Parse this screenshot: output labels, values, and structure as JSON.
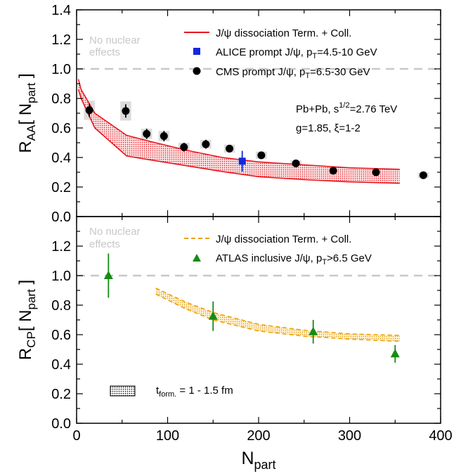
{
  "chart_data": [
    {
      "type": "scatter",
      "panel": "top",
      "ylabel_main": "R",
      "ylabel_sub": "AA",
      "ylabel_rest": "[ N",
      "ylabel_rest_sub": "part",
      "ylabel_close": " ]",
      "xlim": [
        0,
        400
      ],
      "ylim": [
        0,
        1.4
      ],
      "yticks": [
        "0.0",
        "0.2",
        "0.4",
        "0.6",
        "0.8",
        "1.0",
        "1.2",
        "1.4"
      ],
      "reference_line": {
        "y": 1.0,
        "label_line1": "No nuclear",
        "label_line2": "effects"
      },
      "info_line1": "Pb+Pb, s",
      "info_line1_sup": "1/2",
      "info_line1_rest": "=2.76 TeV",
      "info_line2": "g=1.85,   ξ=1-2",
      "band": {
        "name": "J/ψ dissociation Term. + Coll.",
        "color": "#e8141e",
        "x": [
          2,
          5,
          20,
          55,
          80,
          120,
          160,
          200,
          250,
          300,
          355
        ],
        "upper": [
          0.93,
          0.86,
          0.7,
          0.55,
          0.51,
          0.45,
          0.4,
          0.37,
          0.35,
          0.33,
          0.32
        ],
        "lower": [
          0.86,
          0.8,
          0.6,
          0.41,
          0.385,
          0.345,
          0.305,
          0.27,
          0.25,
          0.235,
          0.225
        ]
      },
      "series": [
        {
          "name": "ALICE prompt J/ψ, p",
          "name_sub": "T",
          "name_rest": "=4.5-10 GeV",
          "marker": "square",
          "color": "#1428dc",
          "x": [
            182
          ],
          "y": [
            0.375
          ],
          "err": [
            0.07
          ],
          "box_w": [
            0
          ],
          "box_h": [
            0
          ]
        },
        {
          "name": "CMS prompt J/ψ, p",
          "name_sub": "T",
          "name_rest": "=6.5-30 GeV",
          "marker": "circle",
          "color": "#000000",
          "x": [
            14,
            54,
            77,
            96,
            118,
            142,
            168,
            203,
            241,
            282,
            329,
            381
          ],
          "y": [
            0.72,
            0.715,
            0.56,
            0.545,
            0.47,
            0.49,
            0.46,
            0.415,
            0.36,
            0.31,
            0.3,
            0.28
          ],
          "err": [
            0.045,
            0.045,
            0.035,
            0.035,
            0.03,
            0.03,
            0.025,
            0.025,
            0.02,
            0.02,
            0.02,
            0.02
          ],
          "box_w": [
            12,
            12,
            12,
            12,
            12,
            12,
            12,
            12,
            12,
            12,
            12,
            12
          ],
          "box_h": [
            0.13,
            0.13,
            0.07,
            0.07,
            0.06,
            0.06,
            0.055,
            0.05,
            0.04,
            0.035,
            0.035,
            0.035
          ]
        }
      ]
    },
    {
      "type": "scatter",
      "panel": "bottom",
      "ylabel_main": "R",
      "ylabel_sub": "CP",
      "ylabel_rest": "[ N",
      "ylabel_rest_sub": "part",
      "ylabel_close": " ]",
      "xlabel_main": "N",
      "xlabel_sub": "part",
      "xlim": [
        0,
        400
      ],
      "ylim": [
        0,
        1.4
      ],
      "xticks": [
        "0",
        "100",
        "200",
        "300",
        "400"
      ],
      "yticks": [
        "0.0",
        "0.2",
        "0.4",
        "0.6",
        "0.8",
        "1.0",
        "1.2"
      ],
      "reference_line": {
        "y": 1.0,
        "label_line1": "No nuclear",
        "label_line2": "effects"
      },
      "band": {
        "name": "J/ψ dissociation Term. + Coll.",
        "color": "#f0a000",
        "x": [
          87,
          120,
          150,
          200,
          250,
          300,
          355
        ],
        "upper": [
          0.915,
          0.82,
          0.75,
          0.67,
          0.63,
          0.605,
          0.595
        ],
        "lower": [
          0.875,
          0.775,
          0.7,
          0.625,
          0.59,
          0.57,
          0.555
        ]
      },
      "series": [
        {
          "name": "ATLAS inclusive J/ψ, p",
          "name_sub": "T",
          "name_rest": ">6.5 GeV",
          "marker": "triangle",
          "color": "#148c14",
          "x": [
            35,
            150,
            260,
            350
          ],
          "y": [
            1.0,
            0.725,
            0.62,
            0.47
          ],
          "err": [
            0.15,
            0.1,
            0.08,
            0.06
          ]
        }
      ],
      "formation_legend": {
        "label_main": "t",
        "label_sub": "form.",
        "label_rest": " =  1 - 1.5 fm"
      }
    }
  ]
}
